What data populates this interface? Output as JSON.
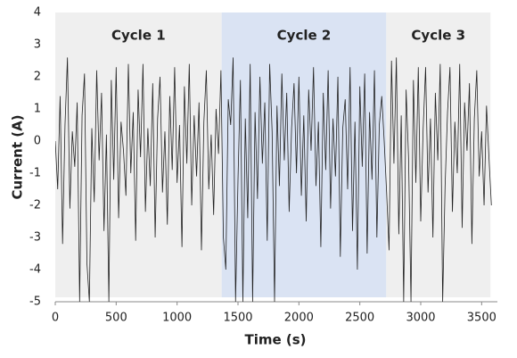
{
  "chart_data": {
    "type": "line",
    "x_label": "Time (s)",
    "y_label": "Current (A)",
    "xlim": [
      0,
      3600
    ],
    "xticks": [
      0,
      500,
      1000,
      1500,
      2000,
      2500,
      3000,
      3500
    ],
    "ylim": [
      -5,
      4
    ],
    "yticks": [
      -5,
      -4,
      -3,
      -2,
      -1,
      0,
      1,
      2,
      3,
      4
    ],
    "grid": false,
    "regions": [
      {
        "label": "Cycle 1",
        "start": 0,
        "end": 1366,
        "color": "#efefef"
      },
      {
        "label": "Cycle 2",
        "start": 1366,
        "end": 2717,
        "color": "#dae3f3"
      },
      {
        "label": "Cycle 3",
        "start": 2717,
        "end": 3572,
        "color": "#efefef"
      }
    ],
    "series": [
      {
        "color": "#222222",
        "x": [
          0,
          20,
          40,
          60,
          80,
          100,
          120,
          140,
          160,
          180,
          200,
          220,
          240,
          260,
          280,
          300,
          320,
          340,
          360,
          380,
          400,
          420,
          440,
          460,
          480,
          500,
          520,
          540,
          560,
          580,
          600,
          620,
          640,
          660,
          680,
          700,
          720,
          740,
          760,
          780,
          800,
          820,
          840,
          860,
          880,
          900,
          920,
          940,
          960,
          980,
          1000,
          1020,
          1040,
          1060,
          1080,
          1100,
          1120,
          1140,
          1160,
          1180,
          1200,
          1220,
          1240,
          1260,
          1280,
          1300,
          1320,
          1340,
          1360,
          1380,
          1400,
          1420,
          1440,
          1460,
          1480,
          1500,
          1520,
          1540,
          1560,
          1580,
          1600,
          1620,
          1640,
          1660,
          1680,
          1700,
          1720,
          1740,
          1760,
          1780,
          1800,
          1820,
          1840,
          1860,
          1880,
          1900,
          1920,
          1940,
          1960,
          1980,
          2000,
          2020,
          2040,
          2060,
          2080,
          2100,
          2120,
          2140,
          2160,
          2180,
          2200,
          2220,
          2240,
          2260,
          2280,
          2300,
          2320,
          2340,
          2360,
          2380,
          2400,
          2420,
          2440,
          2460,
          2480,
          2500,
          2520,
          2540,
          2560,
          2580,
          2600,
          2620,
          2640,
          2660,
          2680,
          2700,
          2720,
          2740,
          2760,
          2780,
          2800,
          2820,
          2840,
          2860,
          2880,
          2900,
          2920,
          2940,
          2960,
          2980,
          3000,
          3020,
          3040,
          3060,
          3080,
          3100,
          3120,
          3140,
          3160,
          3180,
          3200,
          3220,
          3240,
          3260,
          3280,
          3300,
          3320,
          3340,
          3360,
          3380,
          3400,
          3420,
          3440,
          3460,
          3480,
          3500,
          3520,
          3540,
          3560,
          3580
        ],
        "values": [
          0,
          -1.5,
          1.4,
          -3.2,
          0.5,
          2.6,
          -2.1,
          0.3,
          -0.8,
          1.2,
          -5,
          0.8,
          2.1,
          -3.8,
          -5,
          0.4,
          -1.9,
          2.2,
          -0.6,
          1.5,
          -2.8,
          0.2,
          -5,
          1.9,
          -1.2,
          2.3,
          -2.4,
          0.6,
          -0.3,
          -1.7,
          2.4,
          -1.0,
          0.9,
          -3.1,
          1.6,
          -0.5,
          2.4,
          -2.2,
          0.4,
          -1.4,
          1.8,
          -3.0,
          0.7,
          2.0,
          -1.6,
          0.3,
          -2.6,
          1.4,
          -0.9,
          2.3,
          -1.3,
          0.5,
          -3.3,
          1.7,
          -0.7,
          2.4,
          -2.0,
          0.8,
          -1.1,
          1.2,
          -3.4,
          0.6,
          2.2,
          -1.5,
          0.2,
          -2.3,
          1.0,
          -0.4,
          2.2,
          -3.0,
          -4.0,
          1.3,
          0.5,
          2.6,
          -5,
          -1.2,
          1.9,
          -5,
          0.7,
          -2.4,
          2.4,
          -5,
          0.9,
          -1.8,
          2.0,
          -0.7,
          1.2,
          -3.1,
          2.4,
          0.3,
          -5,
          1.1,
          -1.4,
          2.1,
          -0.6,
          1.5,
          -2.2,
          0.4,
          1.8,
          -1.0,
          2.0,
          -1.7,
          0.8,
          -2.5,
          1.6,
          -0.3,
          2.3,
          -1.4,
          0.6,
          -3.3,
          1.5,
          -0.9,
          2.2,
          -2.1,
          0.7,
          -1.1,
          2.0,
          -3.6,
          0.4,
          1.3,
          -1.5,
          2.3,
          -2.8,
          0.6,
          -4.0,
          1.7,
          -0.8,
          2.1,
          -3.5,
          0.9,
          -1.2,
          2.2,
          -3.0,
          0.5,
          1.4,
          0,
          -1.6,
          -3.4,
          2.5,
          -0.7,
          2.6,
          -2.9,
          0.8,
          -5,
          1.6,
          -0.5,
          -5,
          1.9,
          -1.3,
          2.3,
          -2.5,
          0.4,
          2.3,
          -1.6,
          0.7,
          -3.0,
          1.5,
          -0.6,
          2.4,
          -5,
          -1.4,
          0.9,
          2.3,
          -2.2,
          0.6,
          -1.0,
          2.4,
          -2.7,
          1.2,
          -0.3,
          1.8,
          -3.2,
          0.7,
          2.2,
          -1.1,
          0.3,
          -2.0,
          1.1,
          -0.5,
          -2.0
        ]
      }
    ]
  }
}
